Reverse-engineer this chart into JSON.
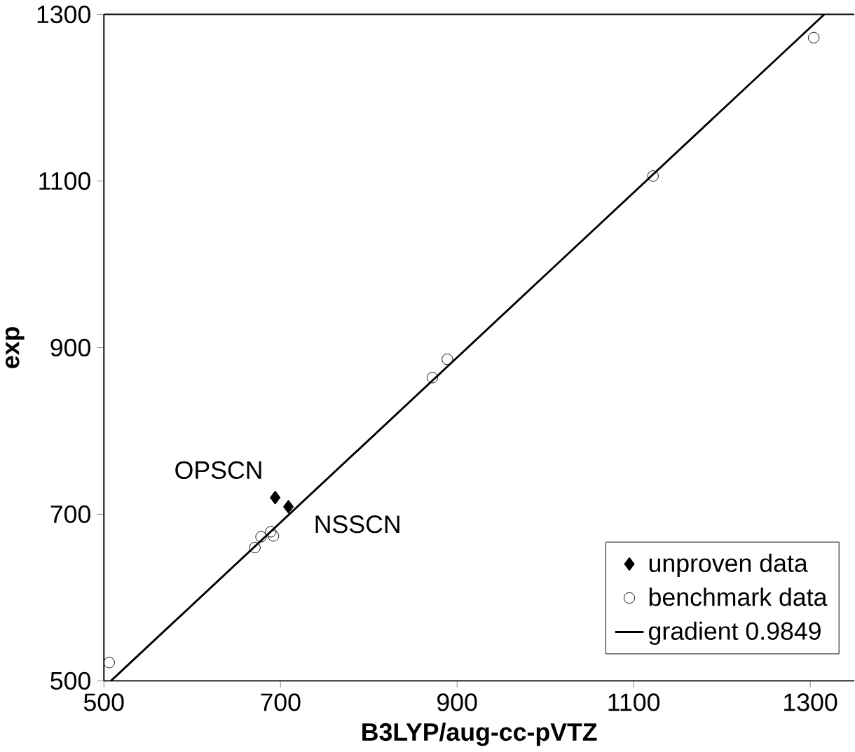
{
  "chart_data": {
    "type": "scatter",
    "xlabel": "B3LYP/aug-cc-pVTZ",
    "ylabel": "exp",
    "xlim": [
      500,
      1350
    ],
    "ylim": [
      500,
      1300
    ],
    "xticks": [
      500,
      700,
      900,
      1100,
      1300
    ],
    "yticks": [
      500,
      700,
      900,
      1100,
      1300
    ],
    "grid": false,
    "legend": "bottom right",
    "series": [
      {
        "name": "unproven data",
        "marker": "diamond",
        "color": "#000000",
        "x": [
          694,
          709
        ],
        "values": [
          720,
          709
        ]
      },
      {
        "name": "benchmark data",
        "marker": "circle",
        "color": "#000000",
        "x": [
          506,
          671,
          678,
          689,
          692,
          872,
          889,
          1122,
          1304
        ],
        "values": [
          522,
          660,
          673,
          679,
          674,
          864,
          886,
          1106,
          1272
        ]
      },
      {
        "name": "gradient 0.9849",
        "type": "line",
        "marker": "none",
        "line_style": "solid",
        "color": "#000000",
        "x": [
          508,
          1316
        ],
        "values": [
          500,
          1300
        ]
      }
    ],
    "annotations": [
      {
        "text": "OPSCN",
        "x": 694,
        "y": 720
      },
      {
        "text": "NSSCN",
        "x": 709,
        "y": 709
      }
    ]
  }
}
